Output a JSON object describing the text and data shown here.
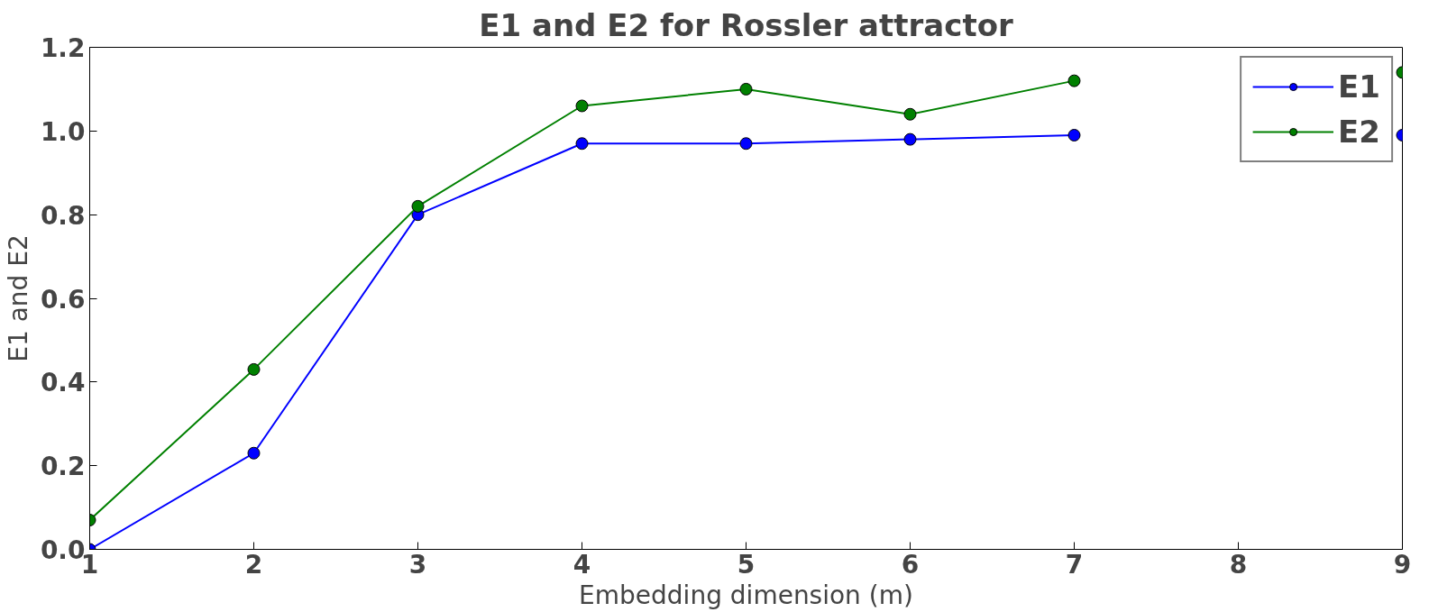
{
  "chart_data": {
    "type": "line",
    "title": "E1 and E2 for Rossler attractor",
    "xlabel": "Embedding dimension (m)",
    "ylabel": "E1 and E2",
    "x": [
      1,
      2,
      3,
      4,
      5,
      6,
      7,
      8,
      9
    ],
    "series": [
      {
        "name": "E1",
        "color": "#0000ff",
        "values": [
          0.0,
          0.23,
          0.8,
          0.97,
          0.97,
          0.98,
          0.99,
          null,
          0.99
        ]
      },
      {
        "name": "E2",
        "color": "#008000",
        "values": [
          0.07,
          0.43,
          0.82,
          1.06,
          1.1,
          1.04,
          1.12,
          null,
          1.14
        ]
      }
    ],
    "xlim": [
      1,
      9
    ],
    "ylim": [
      0,
      1.2
    ],
    "xticks": [
      1,
      2,
      3,
      4,
      5,
      6,
      7,
      8,
      9
    ],
    "yticks": [
      {
        "value": 0,
        "label": "0.0"
      },
      {
        "value": 0.2,
        "label": "0.2"
      },
      {
        "value": 0.4,
        "label": "0.4"
      },
      {
        "value": 0.6,
        "label": "0.6"
      },
      {
        "value": 0.8,
        "label": "0.8"
      },
      {
        "value": 1.0,
        "label": "1.0"
      },
      {
        "value": 1.2,
        "label": "1.2"
      }
    ],
    "grid": false,
    "legend": "top right",
    "marker": "circle",
    "line_style": "solid"
  }
}
